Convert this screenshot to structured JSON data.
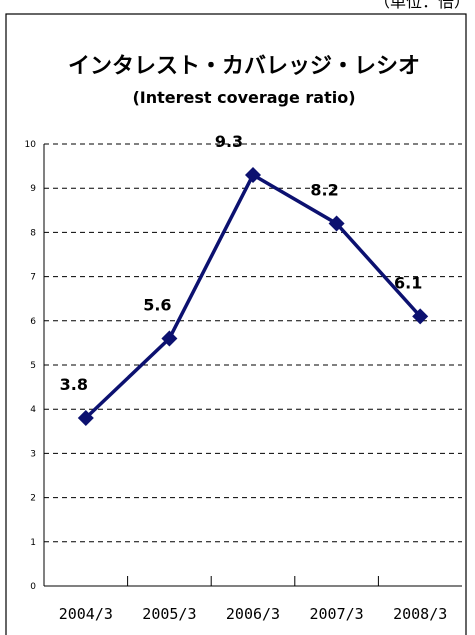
{
  "header": {
    "unit_label": "（単位：倍）"
  },
  "chart_data": {
    "type": "line",
    "title": "インタレスト・カバレッジ・レシオ",
    "subtitle": "(Interest coverage ratio)",
    "categories": [
      "2004/3",
      "2005/3",
      "2006/3",
      "2007/3",
      "2008/3"
    ],
    "series": [
      {
        "values": [
          3.8,
          5.6,
          9.3,
          8.2,
          6.1
        ],
        "labels": [
          "3.8",
          "5.6",
          "9.3",
          "8.2",
          "6.1"
        ]
      }
    ],
    "ylim": [
      0,
      10
    ],
    "yticks": [
      0,
      1,
      2,
      3,
      4,
      5,
      6,
      7,
      8,
      9,
      10
    ],
    "grid": true,
    "line_color": "#0c1170"
  }
}
